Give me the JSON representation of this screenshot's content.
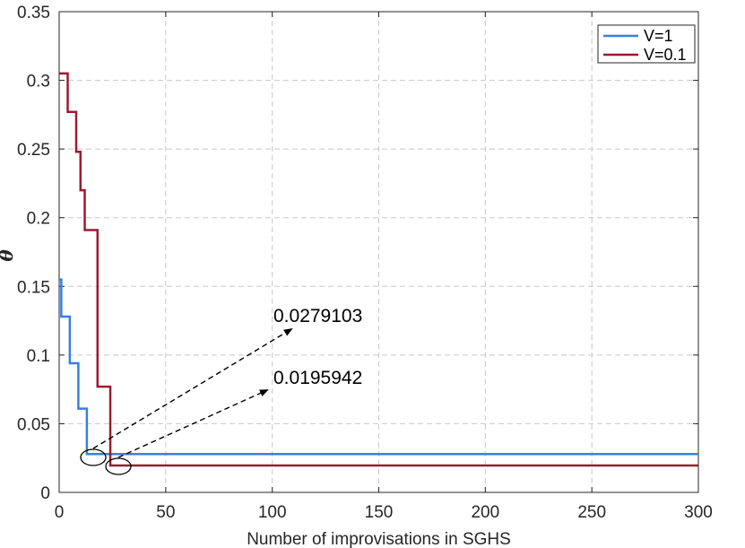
{
  "chart_data": {
    "type": "line",
    "title": "",
    "xlabel": "Number of improvisations in SGHS",
    "ylabel": "θ",
    "xlim": [
      0,
      300
    ],
    "ylim": [
      0,
      0.35
    ],
    "xticks": [
      0,
      50,
      100,
      150,
      200,
      250,
      300
    ],
    "yticks": [
      0,
      0.05,
      0.1,
      0.15,
      0.2,
      0.25,
      0.3,
      0.35
    ],
    "xtick_labels": [
      "0",
      "50",
      "100",
      "150",
      "200",
      "250",
      "300"
    ],
    "ytick_labels": [
      "0",
      "0.05",
      "0.1",
      "0.15",
      "0.2",
      "0.25",
      "0.3",
      "0.35"
    ],
    "grid": true,
    "legend_position": "top-right",
    "series": [
      {
        "name": "V=1",
        "color": "#3a7fe0",
        "x": [
          0,
          1,
          1,
          5,
          5,
          9,
          9,
          10,
          10,
          13,
          13,
          300
        ],
        "y": [
          0.155,
          0.155,
          0.128,
          0.128,
          0.094,
          0.094,
          0.061,
          0.061,
          0.061,
          0.061,
          0.0279103,
          0.0279103
        ]
      },
      {
        "name": "V=0.1",
        "color": "#9b1b30",
        "x": [
          0,
          4,
          4,
          8,
          8,
          10,
          10,
          12,
          12,
          15,
          15,
          18,
          18,
          22,
          22,
          24,
          24,
          26,
          26,
          300
        ],
        "y": [
          0.305,
          0.305,
          0.277,
          0.277,
          0.248,
          0.248,
          0.22,
          0.22,
          0.191,
          0.191,
          0.191,
          0.191,
          0.077,
          0.077,
          0.077,
          0.077,
          0.0195942,
          0.0195942,
          0.0195942,
          0.0195942
        ]
      }
    ],
    "annotations": [
      {
        "text": "0.0279103",
        "series": "V=1",
        "point_x": 15,
        "point_y": 0.0279103
      },
      {
        "text": "0.0195942",
        "series": "V=0.1",
        "point_x": 27,
        "point_y": 0.0195942
      }
    ]
  }
}
